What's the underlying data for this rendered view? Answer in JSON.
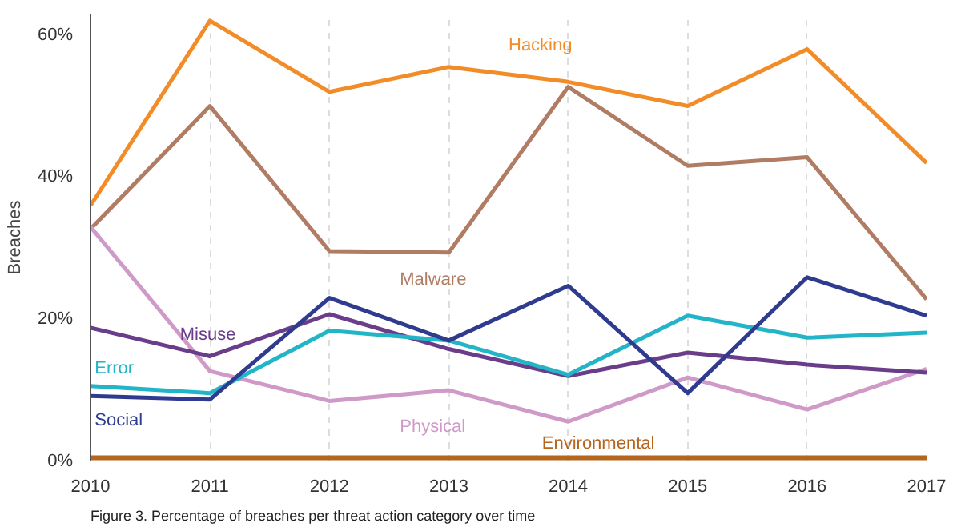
{
  "chart_data": {
    "type": "line",
    "ylabel": "Breaches",
    "x": [
      2010,
      2011,
      2012,
      2013,
      2014,
      2015,
      2016,
      2017
    ],
    "xlim": [
      2010,
      2017
    ],
    "xticks": [
      2010,
      2011,
      2012,
      2013,
      2014,
      2015,
      2016,
      2017
    ],
    "ylim": [
      0,
      63
    ],
    "yticks": [
      {
        "value": 0,
        "label": "0%"
      },
      {
        "value": 20,
        "label": "20%"
      },
      {
        "value": 40,
        "label": "40%"
      },
      {
        "value": 60,
        "label": "60%"
      }
    ],
    "grid": "x",
    "legend": false,
    "marker": "none",
    "line_style": "solid",
    "series": [
      {
        "name": "Hacking",
        "color": "#f28c28",
        "values": [
          36,
          62,
          52,
          55.5,
          53.4,
          50,
          58,
          42
        ]
      },
      {
        "name": "Malware",
        "color": "#b07c64",
        "values": [
          32.7,
          50,
          29.6,
          29.4,
          52.7,
          41.6,
          42.8,
          22.8
        ]
      },
      {
        "name": "Physical",
        "color": "#d09ac8",
        "values": [
          33,
          12.7,
          8.5,
          10,
          5.6,
          11.8,
          7.3,
          13
        ]
      },
      {
        "name": "Misuse",
        "color": "#6a3d8a",
        "values": [
          18.8,
          14.8,
          20.7,
          15.8,
          12,
          15.3,
          13.6,
          12.5
        ]
      },
      {
        "name": "Error",
        "color": "#22b5c8",
        "values": [
          10.6,
          9.6,
          18.4,
          17,
          12.2,
          20.5,
          17.4,
          18.1
        ]
      },
      {
        "name": "Social",
        "color": "#2e3b8f",
        "values": [
          9.2,
          8.7,
          23,
          17,
          24.7,
          9.6,
          25.9,
          20.5
        ]
      },
      {
        "name": "Environmental",
        "color": "#b5651d",
        "values": [
          0.5,
          0.5,
          0.5,
          0.5,
          0.5,
          0.5,
          0.5,
          0.5
        ]
      }
    ],
    "annotations": [
      "Figure 3.   Percentage of breaches per threat action category over time"
    ]
  }
}
